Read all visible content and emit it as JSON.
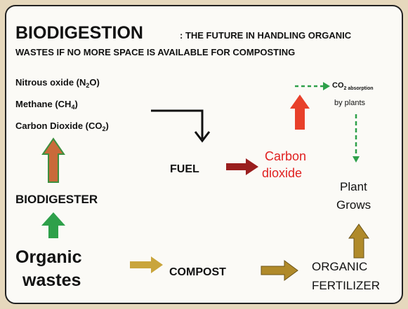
{
  "title": "BIODIGESTION",
  "subtitle": [
    ": THE FUTURE IN HANDLING ORGANIC",
    "WASTES IF NO MORE SPACE IS AVAILABLE FOR COMPOSTING"
  ],
  "emissions": [
    {
      "text": "Nitrous oxide (N",
      "sub": "2",
      "after": "O)"
    },
    {
      "text": "Methane (CH",
      "sub": "4",
      "after": ")"
    },
    {
      "text": "Carbon Dioxide (CO",
      "sub": "2",
      "after": ")"
    }
  ],
  "nodes": {
    "biodigester": "BIODIGESTER",
    "organic_wastes": [
      "Organic",
      "wastes"
    ],
    "fuel": "FUEL",
    "carbon_dioxide": [
      "Carbon",
      "dioxide"
    ],
    "co2_absorption": {
      "text": "CO",
      "sub": "2 absorption",
      "line2": "by plants"
    },
    "plant_grows": [
      "Plant",
      "Grows"
    ],
    "compost": "COMPOST",
    "organic_fertilizer": [
      "ORGANIC",
      "FERTILIZER"
    ]
  }
}
